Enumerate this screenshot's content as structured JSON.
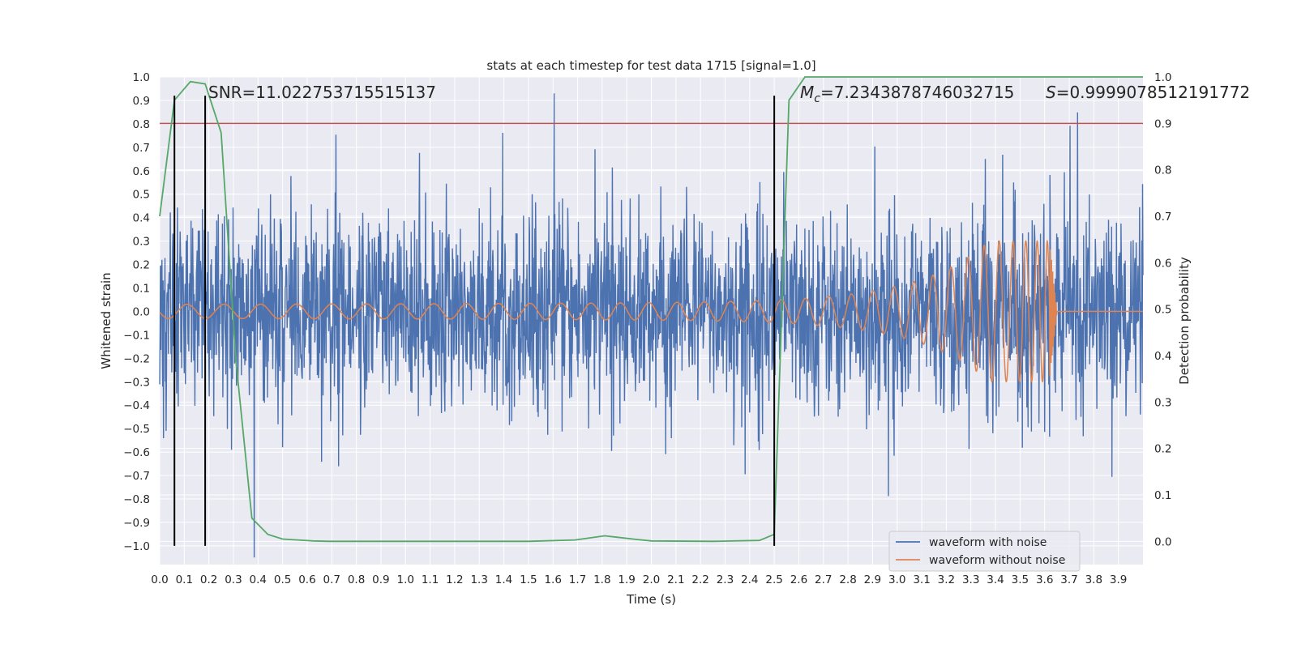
{
  "chart_data": {
    "type": "line",
    "title": "stats at each timestep for test data 1715 [signal=1.0]",
    "xlabel": "Time (s)",
    "ylabel_left": "Whitened strain",
    "ylabel_right": "Detection probability",
    "xlim": [
      0.0,
      4.0
    ],
    "ylim_left": [
      -1.08,
      1.0
    ],
    "ylim_right": [
      -0.05,
      1.0
    ],
    "x_ticks": [
      "0.0",
      "0.1",
      "0.2",
      "0.3",
      "0.4",
      "0.5",
      "0.6",
      "0.7",
      "0.8",
      "0.9",
      "1.0",
      "1.1",
      "1.2",
      "1.3",
      "1.4",
      "1.5",
      "1.6",
      "1.7",
      "1.8",
      "1.9",
      "2.0",
      "2.1",
      "2.2",
      "2.3",
      "2.4",
      "2.5",
      "2.6",
      "2.7",
      "2.8",
      "2.9",
      "3.0",
      "3.1",
      "3.2",
      "3.3",
      "3.4",
      "3.5",
      "3.6",
      "3.7",
      "3.8",
      "3.9"
    ],
    "y_left_ticks": [
      "1.0",
      "0.9",
      "0.8",
      "0.7",
      "0.6",
      "0.5",
      "0.4",
      "0.3",
      "0.2",
      "0.1",
      "0.0",
      "−0.1",
      "−0.2",
      "−0.3",
      "−0.4",
      "−0.5",
      "−0.6",
      "−0.7",
      "−0.8",
      "−0.9",
      "−1.0"
    ],
    "y_right_ticks": [
      "1.0",
      "0.9",
      "0.8",
      "0.7",
      "0.6",
      "0.5",
      "0.4",
      "0.3",
      "0.2",
      "0.1",
      "0.0"
    ],
    "annotations": {
      "snr": "SNR=11.022753715515137",
      "mc_symbol": "M",
      "mc_sub": "c",
      "mc_value": "=7.2343878746032715",
      "s_symbol": "S",
      "s_value": "=0.9999078512191772"
    },
    "threshold": {
      "value": 0.9,
      "axis": "right",
      "color": "#c44e52"
    },
    "vertical_lines": [
      0.06,
      0.185,
      2.5
    ],
    "vertical_line_range": [
      -1.0,
      0.92
    ],
    "series": [
      {
        "name": "waveform with noise",
        "color": "#4c72b0",
        "axis": "left",
        "kind": "noise",
        "noise_amplitude": 0.2
      },
      {
        "name": "waveform without noise",
        "color": "#dd8452",
        "axis": "left",
        "kind": "chirp",
        "merger_time": 3.62,
        "amplitude_start": 0.03,
        "amplitude_peak": 0.3
      },
      {
        "name": "detection probability",
        "color": "#55a868",
        "axis": "right",
        "x": [
          0.0,
          0.06,
          0.125,
          0.185,
          0.25,
          0.31,
          0.375,
          0.44,
          0.5,
          0.56,
          0.625,
          0.69,
          0.75,
          1.0,
          1.5,
          1.69,
          1.81,
          1.94,
          2.0,
          2.25,
          2.44,
          2.5,
          2.56,
          2.625,
          2.69,
          3.0,
          3.5,
          4.0
        ],
        "y": [
          0.7,
          0.95,
          0.99,
          0.985,
          0.88,
          0.39,
          0.05,
          0.015,
          0.005,
          0.003,
          0.001,
          0.0,
          0.0,
          0.0,
          0.0,
          0.003,
          0.012,
          0.004,
          0.001,
          0.0,
          0.002,
          0.015,
          0.95,
          1.0,
          1.0,
          1.0,
          1.0,
          1.0
        ]
      }
    ],
    "legend": {
      "position": "lower-right",
      "entries": [
        "waveform with noise",
        "waveform without noise"
      ]
    },
    "grid": true
  }
}
